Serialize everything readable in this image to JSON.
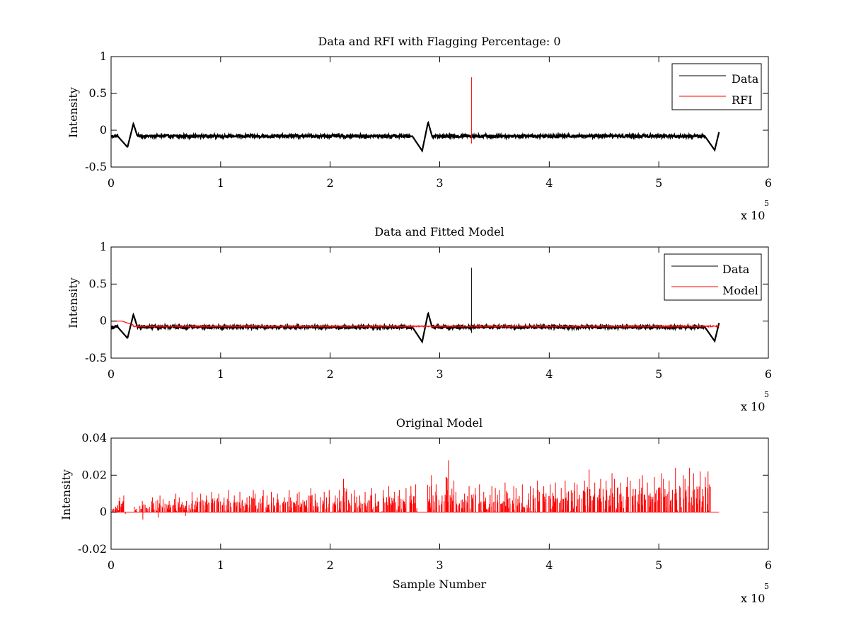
{
  "chart_data": [
    {
      "type": "line",
      "title": "Data and RFI with Flagging Percentage: 0",
      "ylabel": "Intensity",
      "xlabel": "",
      "xlim": [
        0,
        600000
      ],
      "ylim": [
        -0.5,
        1
      ],
      "x_ticks": [
        0,
        1,
        2,
        3,
        4,
        5,
        6
      ],
      "y_ticks": [
        "-0.5",
        "0",
        "0.5",
        "1"
      ],
      "x_exponent": "x 10",
      "x_exponent_power": "5",
      "legend_position": "top-right",
      "grid": false,
      "series": [
        {
          "name": "Data",
          "color": "#000000",
          "baseline": -0.08,
          "noise_amplitude": 0.02,
          "x_end": 555000,
          "dips": [
            [
              15000,
              -0.23,
              0.09
            ],
            [
              284000,
              -0.28,
              0.11
            ],
            [
              551000,
              -0.27,
              0.06
            ]
          ],
          "spikes": []
        },
        {
          "name": "RFI",
          "color": "#ff0000",
          "spikes": [
            [
              329000,
              -0.18,
              0.72
            ]
          ]
        }
      ]
    },
    {
      "type": "line",
      "title": "Data and Fitted Model",
      "ylabel": "Intensity",
      "xlabel": "",
      "xlim": [
        0,
        600000
      ],
      "ylim": [
        -0.5,
        1
      ],
      "x_ticks": [
        0,
        1,
        2,
        3,
        4,
        5,
        6
      ],
      "y_ticks": [
        "-0.5",
        "0",
        "0.5",
        "1"
      ],
      "x_exponent": "x 10",
      "x_exponent_power": "5",
      "legend_position": "top-right",
      "grid": false,
      "series": [
        {
          "name": "Data",
          "color": "#000000",
          "baseline": -0.08,
          "noise_amplitude": 0.02,
          "x_end": 555000,
          "dips": [
            [
              15000,
              -0.23,
              0.09
            ],
            [
              284000,
              -0.28,
              0.11
            ],
            [
              551000,
              -0.27,
              0.06
            ]
          ],
          "spikes": [
            [
              329000,
              -0.16,
              0.72
            ]
          ]
        },
        {
          "name": "Model",
          "color": "#ff0000",
          "baseline": -0.07,
          "noise_amplitude": 0.008,
          "x_end": 555000,
          "start_segment": [
            [
              0,
              0.0
            ],
            [
              10000,
              0.0
            ],
            [
              20000,
              -0.05
            ]
          ],
          "dips": [],
          "spikes": []
        }
      ]
    },
    {
      "type": "line",
      "title": "Original Model",
      "ylabel": "Intensity",
      "xlabel": "Sample Number",
      "xlim": [
        0,
        600000
      ],
      "ylim": [
        -0.02,
        0.04
      ],
      "x_ticks": [
        0,
        1,
        2,
        3,
        4,
        5,
        6
      ],
      "y_ticks": [
        "-0.02",
        "0",
        "0.02",
        "0.04"
      ],
      "x_exponent": "x 10",
      "x_exponent_power": "5",
      "grid": false,
      "series": [
        {
          "color": "#ff0000",
          "baseline": 0,
          "x_end": 555000,
          "pulses": [
            [
              3000,
              0.003
            ],
            [
              6000,
              0.008
            ],
            [
              9000,
              0.006
            ],
            [
              11000,
              0.009
            ],
            [
              22000,
              0.003
            ],
            [
              28000,
              0.006
            ],
            [
              33000,
              0.004
            ],
            [
              38000,
              0.008
            ],
            [
              43000,
              0.009
            ],
            [
              48000,
              0.007
            ],
            [
              53000,
              0.006
            ],
            [
              58000,
              0.01
            ],
            [
              63000,
              0.008
            ],
            [
              68000,
              0.006
            ],
            [
              73000,
              0.011
            ],
            [
              78000,
              0.008
            ],
            [
              83000,
              0.01
            ],
            [
              88000,
              0.009
            ],
            [
              93000,
              0.011
            ],
            [
              98000,
              0.01
            ],
            [
              103000,
              0.008
            ],
            [
              108000,
              0.012
            ],
            [
              113000,
              0.009
            ],
            [
              118000,
              0.011
            ],
            [
              123000,
              0.008
            ],
            [
              128000,
              0.012
            ],
            [
              133000,
              0.01
            ],
            [
              138000,
              0.012
            ],
            [
              143000,
              0.009
            ],
            [
              148000,
              0.011
            ],
            [
              153000,
              0.01
            ],
            [
              158000,
              0.008
            ],
            [
              163000,
              0.012
            ],
            [
              168000,
              0.01
            ],
            [
              173000,
              0.011
            ],
            [
              178000,
              0.009
            ],
            [
              183000,
              0.013
            ],
            [
              188000,
              0.01
            ],
            [
              193000,
              0.011
            ],
            [
              198000,
              0.012
            ],
            [
              203000,
              0.009
            ],
            [
              208000,
              0.012
            ],
            [
              213000,
              0.018
            ],
            [
              218000,
              0.01
            ],
            [
              223000,
              0.012
            ],
            [
              228000,
              0.009
            ],
            [
              233000,
              0.011
            ],
            [
              238000,
              0.013
            ],
            [
              243000,
              0.01
            ],
            [
              248000,
              0.012
            ],
            [
              253000,
              0.014
            ],
            [
              258000,
              0.011
            ],
            [
              263000,
              0.012
            ],
            [
              268000,
              0.013
            ],
            [
              273000,
              0.014
            ],
            [
              278000,
              0.015
            ],
            [
              291000,
              0.02
            ],
            [
              296000,
              0.015
            ],
            [
              301000,
              0.009
            ],
            [
              306000,
              0.028
            ],
            [
              311000,
              0.017
            ],
            [
              316000,
              0.011
            ],
            [
              321000,
              0.01
            ],
            [
              326000,
              0.014
            ],
            [
              331000,
              0.013
            ],
            [
              336000,
              0.015
            ],
            [
              341000,
              0.011
            ],
            [
              346000,
              0.014
            ],
            [
              351000,
              0.013
            ],
            [
              356000,
              0.012
            ],
            [
              361000,
              0.016
            ],
            [
              366000,
              0.014
            ],
            [
              371000,
              0.013
            ],
            [
              376000,
              0.015
            ],
            [
              381000,
              0.014
            ],
            [
              386000,
              0.013
            ],
            [
              391000,
              0.017
            ],
            [
              396000,
              0.014
            ],
            [
              401000,
              0.015
            ],
            [
              406000,
              0.016
            ],
            [
              411000,
              0.013
            ],
            [
              416000,
              0.017
            ],
            [
              421000,
              0.016
            ],
            [
              426000,
              0.015
            ],
            [
              431000,
              0.017
            ],
            [
              436000,
              0.023
            ],
            [
              441000,
              0.016
            ],
            [
              446000,
              0.018
            ],
            [
              451000,
              0.017
            ],
            [
              456000,
              0.021
            ],
            [
              461000,
              0.018
            ],
            [
              466000,
              0.016
            ],
            [
              471000,
              0.019
            ],
            [
              476000,
              0.017
            ],
            [
              481000,
              0.018
            ],
            [
              486000,
              0.02
            ],
            [
              491000,
              0.016
            ],
            [
              496000,
              0.019
            ],
            [
              501000,
              0.021
            ],
            [
              506000,
              0.018
            ],
            [
              511000,
              0.017
            ],
            [
              516000,
              0.024
            ],
            [
              521000,
              0.02
            ],
            [
              526000,
              0.024
            ],
            [
              531000,
              0.021
            ],
            [
              536000,
              0.022
            ],
            [
              541000,
              0.019
            ],
            [
              546000,
              0.022
            ]
          ],
          "negatives": [
            [
              29000,
              -0.004
            ],
            [
              43000,
              -0.003
            ],
            [
              68000,
              -0.002
            ],
            [
              13000,
              -0.001
            ]
          ]
        }
      ]
    }
  ]
}
